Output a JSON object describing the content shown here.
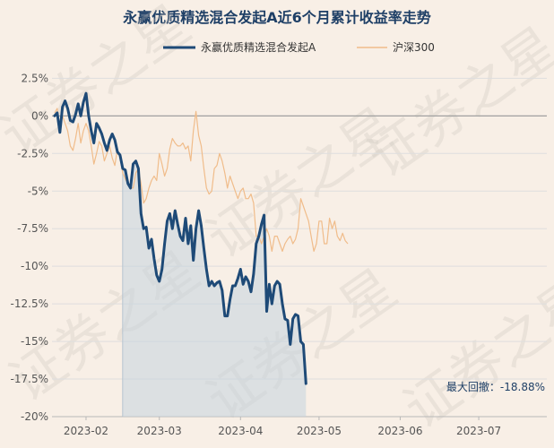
{
  "chart_data": {
    "type": "line",
    "title": "永赢优质精选混合发起A近6个月累计收益率走势",
    "watermark": "证券之星",
    "ylim": [
      -20,
      3
    ],
    "yticks": [
      2.5,
      0,
      -2.5,
      -5,
      -7.5,
      -10,
      -12.5,
      -15,
      -17.5,
      -20
    ],
    "ytick_labels": [
      "2.5%",
      "0%",
      "-2.5%",
      "-5%",
      "-7.5%",
      "-10%",
      "-12.5%",
      "-15%",
      "-17.5%",
      "-20%"
    ],
    "xlim": [
      "2023-01-19",
      "2023-07-27"
    ],
    "xticks": [
      "2023-02-01",
      "2023-03-01",
      "2023-04-01",
      "2023-05-01",
      "2023-06-01",
      "2023-07-01"
    ],
    "xtick_labels": [
      "2023-02",
      "2023-03",
      "2023-04",
      "2023-05",
      "2023-06",
      "2023-07"
    ],
    "grid": "horizontal",
    "legend_position": "top-center",
    "max_drawdown_start": "2023-02-15",
    "annotation": "最大回撤：-18.88%",
    "colors": {
      "fund": "#1e4a77",
      "index": "#f0bc8a",
      "drawdown_fill": "#c5d3de",
      "zero_line": "#a0a0a0",
      "grid": "#dedede"
    },
    "series": [
      {
        "name": "永赢优质精选混合发起A",
        "points": [
          [
            "2023-01-20",
            0
          ],
          [
            "2023-01-21",
            0.2
          ],
          [
            "2023-01-22",
            -1.1
          ],
          [
            "2023-01-23",
            0.6
          ],
          [
            "2023-01-24",
            1
          ],
          [
            "2023-01-25",
            0.5
          ],
          [
            "2023-01-26",
            -0.3
          ],
          [
            "2023-01-27",
            -0.4
          ],
          [
            "2023-01-28",
            0.1
          ],
          [
            "2023-01-29",
            0.8
          ],
          [
            "2023-01-30",
            0
          ],
          [
            "2023-01-31",
            0.9
          ],
          [
            "2023-02-01",
            1.5
          ],
          [
            "2023-02-02",
            0
          ],
          [
            "2023-02-03",
            -1
          ],
          [
            "2023-02-04",
            -1.8
          ],
          [
            "2023-02-05",
            -0.5
          ],
          [
            "2023-02-06",
            -0.8
          ],
          [
            "2023-02-07",
            -1.2
          ],
          [
            "2023-02-08",
            -1.8
          ],
          [
            "2023-02-09",
            -2.3
          ],
          [
            "2023-02-10",
            -1.6
          ],
          [
            "2023-02-11",
            -1.2
          ],
          [
            "2023-02-12",
            -1.6
          ],
          [
            "2023-02-13",
            -2.4
          ],
          [
            "2023-02-14",
            -2.6
          ],
          [
            "2023-02-15",
            -3.5
          ],
          [
            "2023-02-16",
            -3.6
          ],
          [
            "2023-02-17",
            -4.5
          ],
          [
            "2023-02-18",
            -4.8
          ],
          [
            "2023-02-19",
            -3.2
          ],
          [
            "2023-02-20",
            -3
          ],
          [
            "2023-02-21",
            -3.5
          ],
          [
            "2023-02-22",
            -6.5
          ],
          [
            "2023-02-23",
            -7.5
          ],
          [
            "2023-02-24",
            -7.4
          ],
          [
            "2023-02-25",
            -8.8
          ],
          [
            "2023-02-26",
            -8.2
          ],
          [
            "2023-02-27",
            -9.5
          ],
          [
            "2023-02-28",
            -10.6
          ],
          [
            "2023-03-01",
            -11
          ],
          [
            "2023-03-02",
            -10.2
          ],
          [
            "2023-03-03",
            -8.5
          ],
          [
            "2023-03-04",
            -7
          ],
          [
            "2023-03-05",
            -6.5
          ],
          [
            "2023-03-06",
            -7.5
          ],
          [
            "2023-03-07",
            -6.3
          ],
          [
            "2023-03-08",
            -7.2
          ],
          [
            "2023-03-09",
            -8
          ],
          [
            "2023-03-10",
            -8.3
          ],
          [
            "2023-03-11",
            -6.8
          ],
          [
            "2023-03-12",
            -8.5
          ],
          [
            "2023-03-13",
            -7.3
          ],
          [
            "2023-03-14",
            -9.6
          ],
          [
            "2023-03-15",
            -7.5
          ],
          [
            "2023-03-16",
            -6.3
          ],
          [
            "2023-03-17",
            -7.3
          ],
          [
            "2023-03-18",
            -8.8
          ],
          [
            "2023-03-19",
            -10.2
          ],
          [
            "2023-03-20",
            -11.3
          ],
          [
            "2023-03-21",
            -11
          ],
          [
            "2023-03-22",
            -11.3
          ],
          [
            "2023-03-23",
            -11.1
          ],
          [
            "2023-03-24",
            -11
          ],
          [
            "2023-03-25",
            -11.6
          ],
          [
            "2023-03-26",
            -13.3
          ],
          [
            "2023-03-27",
            -13.3
          ],
          [
            "2023-03-28",
            -12.2
          ],
          [
            "2023-03-29",
            -11.3
          ],
          [
            "2023-03-30",
            -11.3
          ],
          [
            "2023-03-31",
            -10.8
          ],
          [
            "2023-04-01",
            -10.2
          ],
          [
            "2023-04-02",
            -11.2
          ],
          [
            "2023-04-03",
            -10.7
          ],
          [
            "2023-04-04",
            -11
          ],
          [
            "2023-04-05",
            -11.7
          ],
          [
            "2023-04-06",
            -10.5
          ],
          [
            "2023-04-07",
            -8.5
          ],
          [
            "2023-04-08",
            -8
          ],
          [
            "2023-04-09",
            -7.2
          ],
          [
            "2023-04-10",
            -6.6
          ],
          [
            "2023-04-11",
            -13
          ],
          [
            "2023-04-12",
            -11.2
          ],
          [
            "2023-04-13",
            -12.5
          ],
          [
            "2023-04-14",
            -11.3
          ],
          [
            "2023-04-15",
            -11
          ],
          [
            "2023-04-16",
            -11.2
          ],
          [
            "2023-04-17",
            -12.5
          ],
          [
            "2023-04-18",
            -13.5
          ],
          [
            "2023-04-19",
            -13.6
          ],
          [
            "2023-04-20",
            -15.2
          ],
          [
            "2023-04-21",
            -13.5
          ],
          [
            "2023-04-22",
            -13.2
          ],
          [
            "2023-04-23",
            -13.3
          ],
          [
            "2023-04-24",
            -15
          ],
          [
            "2023-04-25",
            -15.2
          ],
          [
            "2023-04-26",
            -17.8
          ]
        ]
      },
      {
        "name": "沪深300",
        "points": [
          [
            "2023-01-20",
            0.2
          ],
          [
            "2023-01-21",
            0.5
          ],
          [
            "2023-01-22",
            -0.8
          ],
          [
            "2023-01-23",
            0
          ],
          [
            "2023-01-24",
            -0.5
          ],
          [
            "2023-01-25",
            -1
          ],
          [
            "2023-01-26",
            -2
          ],
          [
            "2023-01-27",
            -2.3
          ],
          [
            "2023-01-28",
            -1.5
          ],
          [
            "2023-01-29",
            -0.5
          ],
          [
            "2023-01-30",
            -1.8
          ],
          [
            "2023-01-31",
            -1
          ],
          [
            "2023-02-01",
            -0.5
          ],
          [
            "2023-02-02",
            -1
          ],
          [
            "2023-02-03",
            -2
          ],
          [
            "2023-02-04",
            -3.2
          ],
          [
            "2023-02-05",
            -2.5
          ],
          [
            "2023-02-06",
            -1.7
          ],
          [
            "2023-02-07",
            -2
          ],
          [
            "2023-02-08",
            -3
          ],
          [
            "2023-02-09",
            -2.5
          ],
          [
            "2023-02-10",
            -2
          ],
          [
            "2023-02-11",
            -2.8
          ],
          [
            "2023-02-12",
            -3.3
          ],
          [
            "2023-02-13",
            -2.2
          ],
          [
            "2023-02-14",
            -2.8
          ],
          [
            "2023-02-15",
            -3.8
          ],
          [
            "2023-02-16",
            -4.2
          ],
          [
            "2023-02-17",
            -4.5
          ],
          [
            "2023-02-18",
            -4.8
          ],
          [
            "2023-02-19",
            -4.8
          ],
          [
            "2023-02-20",
            -3.8
          ],
          [
            "2023-02-21",
            -3.5
          ],
          [
            "2023-02-22",
            -4.5
          ],
          [
            "2023-02-23",
            -5.8
          ],
          [
            "2023-02-24",
            -5.5
          ],
          [
            "2023-02-25",
            -4.8
          ],
          [
            "2023-02-26",
            -4.3
          ],
          [
            "2023-02-27",
            -4
          ],
          [
            "2023-02-28",
            -4.3
          ],
          [
            "2023-03-01",
            -2.5
          ],
          [
            "2023-03-02",
            -3.2
          ],
          [
            "2023-03-03",
            -4
          ],
          [
            "2023-03-04",
            -3.5
          ],
          [
            "2023-03-05",
            -2.2
          ],
          [
            "2023-03-06",
            -1.5
          ],
          [
            "2023-03-07",
            -1.8
          ],
          [
            "2023-03-08",
            -2
          ],
          [
            "2023-03-09",
            -2
          ],
          [
            "2023-03-10",
            -1.8
          ],
          [
            "2023-03-11",
            -2.2
          ],
          [
            "2023-03-12",
            -2
          ],
          [
            "2023-03-13",
            -3
          ],
          [
            "2023-03-14",
            -1
          ],
          [
            "2023-03-15",
            0.3
          ],
          [
            "2023-03-16",
            -1.3
          ],
          [
            "2023-03-17",
            -2
          ],
          [
            "2023-03-18",
            -3.5
          ],
          [
            "2023-03-19",
            -4.8
          ],
          [
            "2023-03-20",
            -5.2
          ],
          [
            "2023-03-21",
            -5
          ],
          [
            "2023-03-22",
            -3.5
          ],
          [
            "2023-03-23",
            -3.3
          ],
          [
            "2023-03-24",
            -2.5
          ],
          [
            "2023-03-25",
            -3
          ],
          [
            "2023-03-26",
            -3.8
          ],
          [
            "2023-03-27",
            -4.8
          ],
          [
            "2023-03-28",
            -4
          ],
          [
            "2023-03-29",
            -4.5
          ],
          [
            "2023-03-30",
            -5
          ],
          [
            "2023-03-31",
            -5.5
          ],
          [
            "2023-04-01",
            -5
          ],
          [
            "2023-04-02",
            -4.8
          ],
          [
            "2023-04-03",
            -5.5
          ],
          [
            "2023-04-04",
            -5.5
          ],
          [
            "2023-04-05",
            -5.2
          ],
          [
            "2023-04-06",
            -5.8
          ],
          [
            "2023-04-07",
            -8
          ],
          [
            "2023-04-08",
            -8
          ],
          [
            "2023-04-09",
            -8.5
          ],
          [
            "2023-04-10",
            -8
          ],
          [
            "2023-04-11",
            -7.5
          ],
          [
            "2023-04-12",
            -8
          ],
          [
            "2023-04-13",
            -9
          ],
          [
            "2023-04-14",
            -8
          ],
          [
            "2023-04-15",
            -8
          ],
          [
            "2023-04-16",
            -8.5
          ],
          [
            "2023-04-17",
            -9
          ],
          [
            "2023-04-18",
            -8.5
          ],
          [
            "2023-04-19",
            -8.2
          ],
          [
            "2023-04-20",
            -8
          ],
          [
            "2023-04-21",
            -8.5
          ],
          [
            "2023-04-22",
            -8.2
          ],
          [
            "2023-04-23",
            -7.5
          ],
          [
            "2023-04-24",
            -5.5
          ],
          [
            "2023-04-25",
            -6
          ],
          [
            "2023-04-26",
            -6.5
          ],
          [
            "2023-04-27",
            -7
          ],
          [
            "2023-04-28",
            -8
          ],
          [
            "2023-04-29",
            -9
          ],
          [
            "2023-04-30",
            -8.5
          ],
          [
            "2023-05-01",
            -7
          ],
          [
            "2023-05-02",
            -7
          ],
          [
            "2023-05-03",
            -8.5
          ],
          [
            "2023-05-04",
            -8.5
          ],
          [
            "2023-05-05",
            -6.8
          ],
          [
            "2023-05-06",
            -7.5
          ],
          [
            "2023-05-07",
            -7
          ],
          [
            "2023-05-08",
            -8
          ],
          [
            "2023-05-09",
            -8.3
          ],
          [
            "2023-05-10",
            -7.8
          ],
          [
            "2023-05-11",
            -8.3
          ],
          [
            "2023-05-12",
            -8.5
          ]
        ]
      }
    ]
  }
}
